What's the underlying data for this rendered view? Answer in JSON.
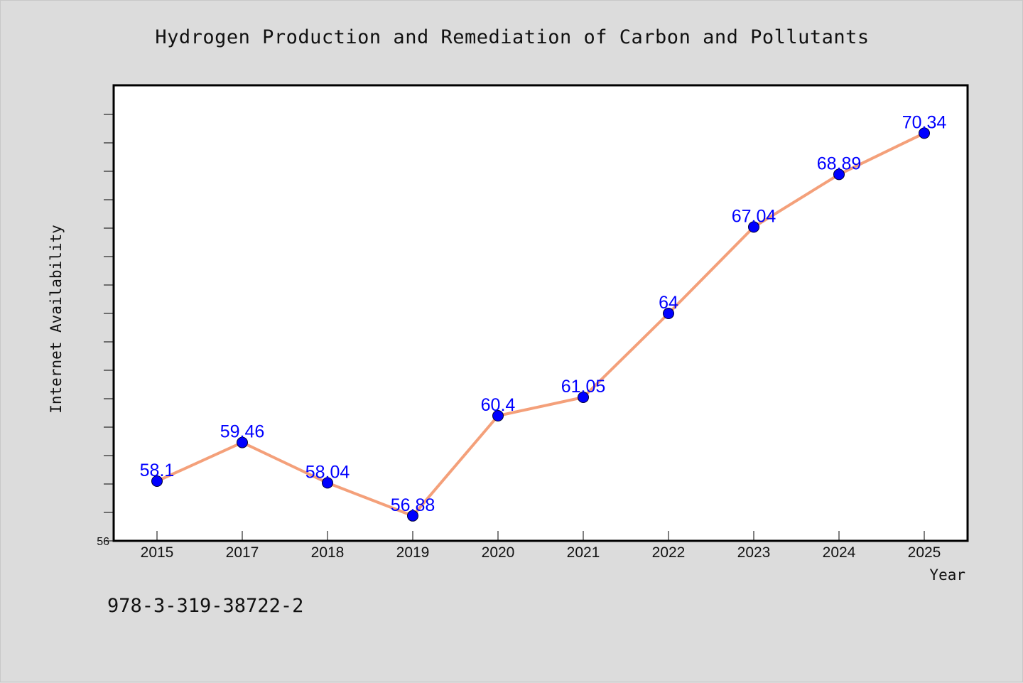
{
  "chart_data": {
    "type": "line",
    "title": "Hydrogen Production and Remediation of Carbon and Pollutants",
    "xlabel": "Year",
    "ylabel": "Internet Availability",
    "categories": [
      "2015",
      "2017",
      "2018",
      "2019",
      "2020",
      "2021",
      "2022",
      "2023",
      "2024",
      "2025"
    ],
    "series": [
      {
        "values": [
          58.1,
          59.46,
          58.04,
          56.88,
          60.4,
          61.05,
          64,
          67.04,
          68.89,
          70.34
        ],
        "labels": [
          "58.1",
          "59.46",
          "58.04",
          "56.88",
          "60.4",
          "61.05",
          "64",
          "67.04",
          "68.89",
          "70.34"
        ]
      }
    ],
    "ylim": [
      56,
      72
    ],
    "y_tick_label": "56",
    "grid": false,
    "line_color": "#f4a07a",
    "marker_color": "#0000ff",
    "label_color": "#0000ff"
  },
  "footer_text": "978-3-319-38722-2"
}
